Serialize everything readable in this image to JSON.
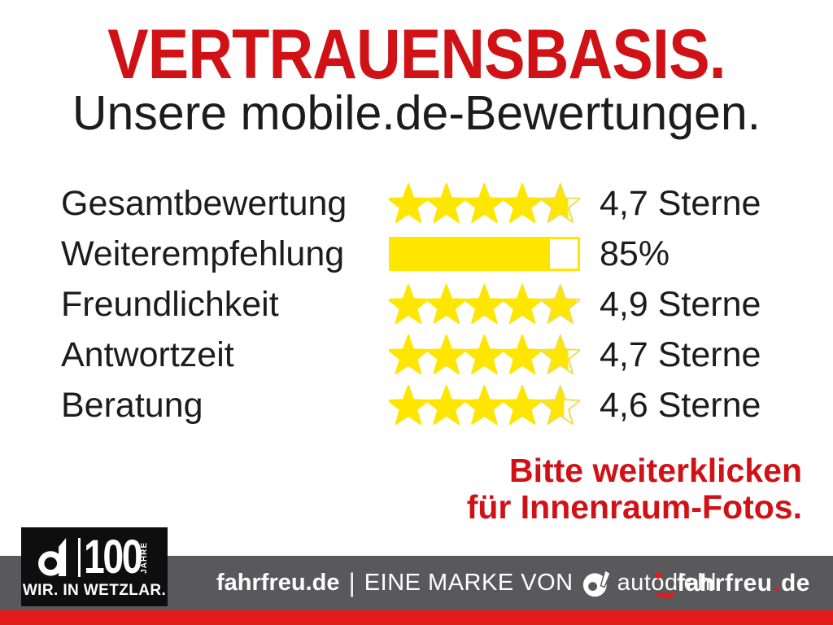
{
  "header": {
    "title": "VERTRAUENSBASIS.",
    "subtitle": "Unsere mobile.de-Bewertungen."
  },
  "ratings": {
    "rows": [
      {
        "label": "Gesamtbewertung",
        "visual": "stars",
        "value": 4.7,
        "max": 5,
        "display": "4,7 Sterne"
      },
      {
        "label": "Weiterempfehlung",
        "visual": "bar",
        "value": 85,
        "max": 100,
        "display": "85%"
      },
      {
        "label": "Freundlichkeit",
        "visual": "stars",
        "value": 4.9,
        "max": 5,
        "display": "4,9 Sterne"
      },
      {
        "label": "Antwortzeit",
        "visual": "stars",
        "value": 4.7,
        "max": 5,
        "display": "4,7 Sterne"
      },
      {
        "label": "Beratung",
        "visual": "stars",
        "value": 4.6,
        "max": 5,
        "display": "4,6 Sterne"
      }
    ]
  },
  "cta": {
    "line1": "Bitte weiterklicken",
    "line2": "für Innenraum-Fotos."
  },
  "footer": {
    "badge": {
      "d_icon": "autodiehl-d-icon",
      "number": "100",
      "years_label": "JAHRE",
      "tagline": "WIR. IN WETZLAR."
    },
    "center": {
      "brand": "fahrfreu.de",
      "separator": "|",
      "text": "EINE MARKE VON",
      "d_icon": "autodiehl-d-icon",
      "partner": "autodiehl"
    },
    "right": {
      "smiley_icon": "smiley-icon",
      "main": "fahrfreu",
      "dot": ".",
      "tld": "de"
    }
  },
  "colors": {
    "accent_red": "#d01217",
    "star_yellow": "#ffe600",
    "star_outline": "#f0dd55",
    "footer_gray": "#59585a",
    "strip_red": "#e31b1c",
    "badge_black": "#0e0e0e",
    "ink": "#1c1c1c"
  },
  "chart_data": {
    "type": "table",
    "title": "VERTRAUENSBASIS.",
    "subtitle": "Unsere mobile.de-Bewertungen.",
    "categories": [
      "Gesamtbewertung",
      "Weiterempfehlung",
      "Freundlichkeit",
      "Antwortzeit",
      "Beratung"
    ],
    "rows": [
      {
        "category": "Gesamtbewertung",
        "value": 4.7,
        "max": 5,
        "unit": "Sterne",
        "display": "4,7 Sterne",
        "visual": "stars"
      },
      {
        "category": "Weiterempfehlung",
        "value": 85,
        "max": 100,
        "unit": "%",
        "display": "85%",
        "visual": "bar"
      },
      {
        "category": "Freundlichkeit",
        "value": 4.9,
        "max": 5,
        "unit": "Sterne",
        "display": "4,9 Sterne",
        "visual": "stars"
      },
      {
        "category": "Antwortzeit",
        "value": 4.7,
        "max": 5,
        "unit": "Sterne",
        "display": "4,7 Sterne",
        "visual": "stars"
      },
      {
        "category": "Beratung",
        "value": 4.6,
        "max": 5,
        "unit": "Sterne",
        "display": "4,6 Sterne",
        "visual": "stars"
      }
    ],
    "legend_position": "none",
    "grid": false
  }
}
